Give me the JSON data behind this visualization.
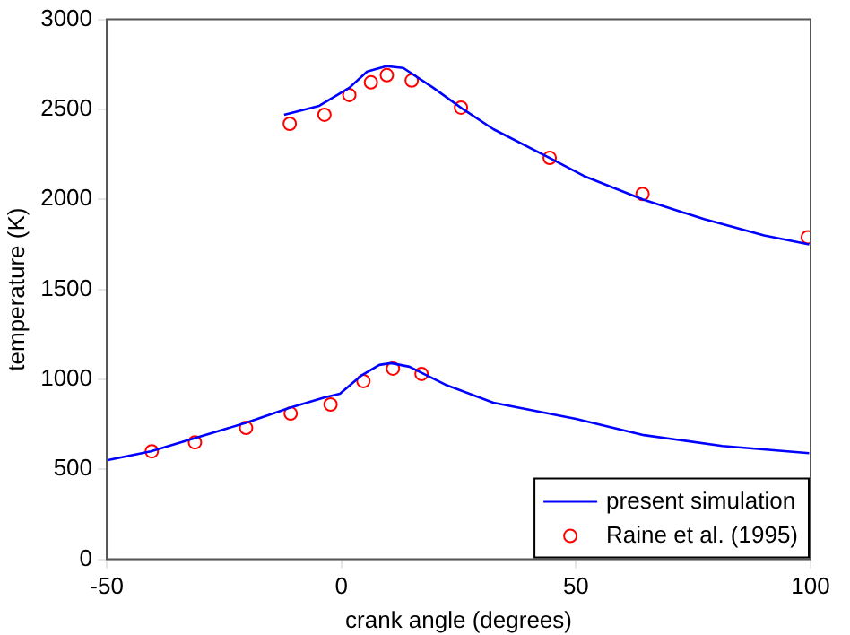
{
  "chart_data": {
    "type": "line",
    "xlabel": "crank angle (degrees)",
    "ylabel": "temperature (K)",
    "xlim": [
      -50,
      100
    ],
    "xticks": [
      -50,
      0,
      50,
      100
    ],
    "ylim": [
      0,
      3000
    ],
    "yticks": [
      0,
      500,
      1000,
      1500,
      2000,
      2500,
      3000
    ],
    "grid": false,
    "legend": "bottom right",
    "series": [
      {
        "name": "present simulation",
        "color": "#0000ff",
        "marker": "none",
        "x": [
          -12.2,
          -4.7,
          1.7,
          5.5,
          9.6,
          13.2,
          19.6,
          26,
          32.4,
          44.4,
          51.7,
          64.2,
          77.3,
          90.1,
          99.7
        ],
        "values": [
          2470,
          2520,
          2620,
          2710,
          2740,
          2730,
          2620,
          2500,
          2390,
          2230,
          2130,
          2000,
          1890,
          1800,
          1750
        ]
      },
      {
        "color": "#0000ff",
        "marker": "none",
        "x": [
          -50,
          -40.6,
          -31.7,
          -20.1,
          -11.2,
          -3.5,
          -0.3,
          4.2,
          8.1,
          10.6,
          14.5,
          22.2,
          32.4,
          50,
          64.5,
          81.2,
          99.7
        ],
        "values": [
          550,
          600,
          670,
          760,
          840,
          900,
          920,
          1020,
          1080,
          1090,
          1070,
          970,
          870,
          780,
          690,
          630,
          590
        ]
      },
      {
        "name": "Raine et al. (1995)",
        "type": "scatter",
        "color": "#ff0000",
        "marker": "circle",
        "x": [
          -11.0,
          -3.6,
          1.7,
          6.3,
          9.7,
          15.0,
          25.5,
          44.4,
          64.2,
          99.4
        ],
        "values": [
          2420,
          2470,
          2580,
          2650,
          2690,
          2660,
          2510,
          2230,
          2030,
          1790
        ]
      },
      {
        "type": "scatter",
        "color": "#ff0000",
        "marker": "circle",
        "x": [
          -40.4,
          -31.2,
          -20.3,
          -10.8,
          -2.3,
          4.7,
          11.0,
          17.1
        ],
        "values": [
          600,
          650,
          730,
          810,
          860,
          990,
          1060,
          1030
        ]
      }
    ]
  }
}
